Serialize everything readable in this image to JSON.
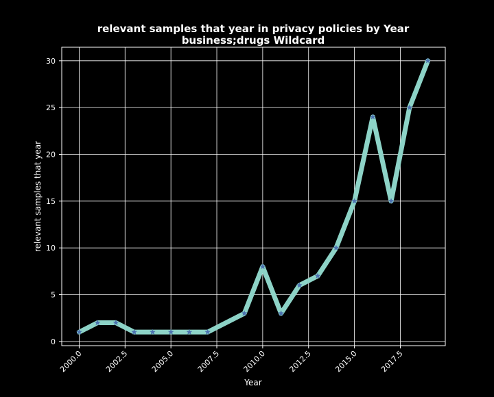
{
  "chart_data": {
    "type": "line",
    "title_line1": "relevant samples that year in privacy policies by Year",
    "title_line2": "business;drugs Wildcard",
    "xlabel": "Year",
    "ylabel": "relevant samples that year",
    "x": [
      2000,
      2001,
      2002,
      2003,
      2004,
      2005,
      2006,
      2007,
      2009,
      2010,
      2011,
      2012,
      2013,
      2014,
      2015,
      2016,
      2017,
      2018,
      2019
    ],
    "series": [
      {
        "values": [
          1,
          2,
          2,
          1,
          1,
          1,
          1,
          1,
          3,
          8,
          3,
          6,
          7,
          10,
          15,
          24,
          15,
          25,
          30
        ]
      }
    ],
    "xlim": [
      1999.05,
      2019.95
    ],
    "ylim": [
      -0.45,
      31.45
    ],
    "xticks": [
      2000.0,
      2002.5,
      2005.0,
      2007.5,
      2010.0,
      2012.5,
      2015.0,
      2017.5
    ],
    "xtick_labels": [
      "2000.0",
      "2002.5",
      "2005.0",
      "2007.5",
      "2010.0",
      "2012.5",
      "2015.0",
      "2017.5"
    ],
    "yticks": [
      0,
      5,
      10,
      15,
      20,
      25,
      30
    ],
    "ytick_labels": [
      "0",
      "5",
      "10",
      "15",
      "20",
      "25",
      "30"
    ],
    "grid": true,
    "line_color": "#8dd3c7",
    "marker_color": "#4c72b0",
    "marker": "star",
    "background": "#000000",
    "text_color": "#ffffff"
  }
}
